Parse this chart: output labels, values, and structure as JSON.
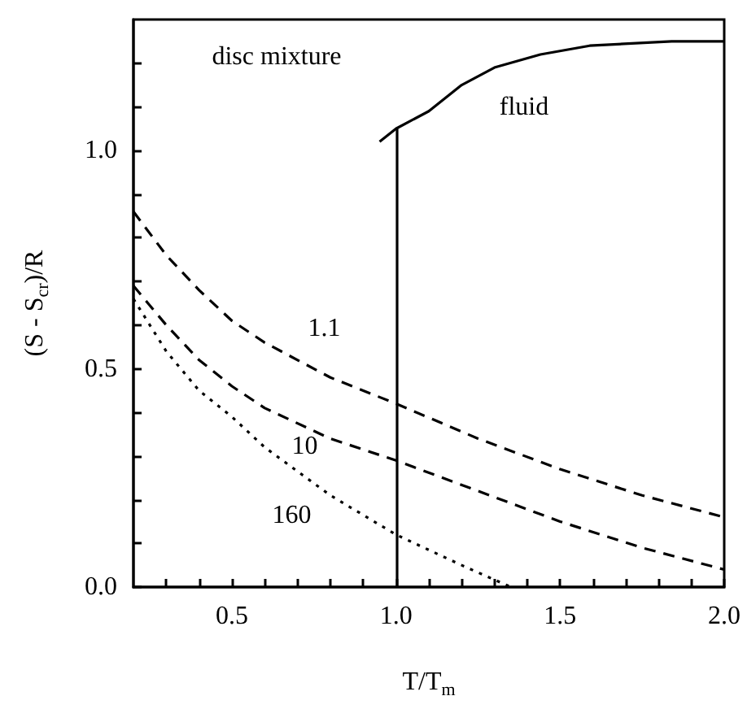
{
  "chart_data": {
    "type": "line",
    "xlabel": "T/T$_{m}$",
    "ylabel": "(S - S$_{cr}$)/R",
    "marker": "none",
    "grid": false,
    "xlim": [
      0.2,
      2.0
    ],
    "ylim": [
      0,
      1.3
    ],
    "xticks": [
      {
        "value": 0.3,
        "label": null
      },
      {
        "value": 0.4,
        "label": null
      },
      {
        "value": 0.5,
        "label": "0.5"
      },
      {
        "value": 0.6,
        "label": null
      },
      {
        "value": 0.7,
        "label": null
      },
      {
        "value": 0.8,
        "label": null
      },
      {
        "value": 0.9,
        "label": null
      },
      {
        "value": 1.0,
        "label": "1.0"
      },
      {
        "value": 1.1,
        "label": null
      },
      {
        "value": 1.2,
        "label": null
      },
      {
        "value": 1.3,
        "label": null
      },
      {
        "value": 1.4,
        "label": null
      },
      {
        "value": 1.5,
        "label": "1.5"
      },
      {
        "value": 1.6,
        "label": null
      },
      {
        "value": 1.7,
        "label": null
      },
      {
        "value": 1.8,
        "label": null
      },
      {
        "value": 1.9,
        "label": null
      },
      {
        "value": 2.0,
        "label": "2.0"
      }
    ],
    "yticks": [
      {
        "value": 0,
        "label": "0.0"
      },
      {
        "value": 0.1,
        "label": null
      },
      {
        "value": 0.2,
        "label": null
      },
      {
        "value": 0.3,
        "label": null
      },
      {
        "value": 0.4,
        "label": null
      },
      {
        "value": 0.5,
        "label": "0.5"
      },
      {
        "value": 0.6,
        "label": null
      },
      {
        "value": 0.7,
        "label": null
      },
      {
        "value": 0.8,
        "label": null
      },
      {
        "value": 0.9,
        "label": null
      },
      {
        "value": 1.0,
        "label": "1.0"
      },
      {
        "value": 1.1,
        "label": null
      },
      {
        "value": 1.2,
        "label": null
      }
    ],
    "series": [
      {
        "name": "1.1",
        "color": "#000000",
        "line_style": "dashed",
        "x": [
          0.2,
          0.3,
          0.4,
          0.5,
          0.6,
          0.8,
          1.0,
          1.25,
          1.5,
          1.75,
          2.0
        ],
        "values": [
          0.86,
          0.76,
          0.68,
          0.61,
          0.56,
          0.48,
          0.42,
          0.34,
          0.27,
          0.21,
          0.16
        ]
      },
      {
        "name": "10",
        "color": "#000000",
        "line_style": "dashed",
        "x": [
          0.2,
          0.3,
          0.4,
          0.5,
          0.6,
          0.8,
          1.0,
          1.25,
          1.5,
          1.75,
          2.0
        ],
        "values": [
          0.69,
          0.6,
          0.52,
          0.46,
          0.41,
          0.34,
          0.29,
          0.22,
          0.15,
          0.09,
          0.04
        ]
      },
      {
        "name": "160",
        "color": "#000000",
        "line_style": "dotted",
        "x": [
          0.2,
          0.3,
          0.4,
          0.5,
          0.6,
          0.8,
          1.0,
          1.2,
          1.35
        ],
        "values": [
          0.66,
          0.54,
          0.45,
          0.39,
          0.32,
          0.21,
          0.12,
          0.05,
          0
        ]
      },
      {
        "color": "#000000",
        "line_style": "solid",
        "x": [
          0.95,
          1.0,
          1.1,
          1.2,
          1.3,
          1.44,
          1.59,
          1.84,
          2.0
        ],
        "values": [
          1.02,
          1.05,
          1.09,
          1.15,
          1.19,
          1.22,
          1.24,
          1.25,
          1.25
        ]
      }
    ],
    "ref_lines": [
      {
        "axis": "x",
        "value": 1.0,
        "color": "#000000",
        "line_style": "solid"
      }
    ],
    "annotations": [
      "disc mixture",
      "fluid"
    ]
  }
}
